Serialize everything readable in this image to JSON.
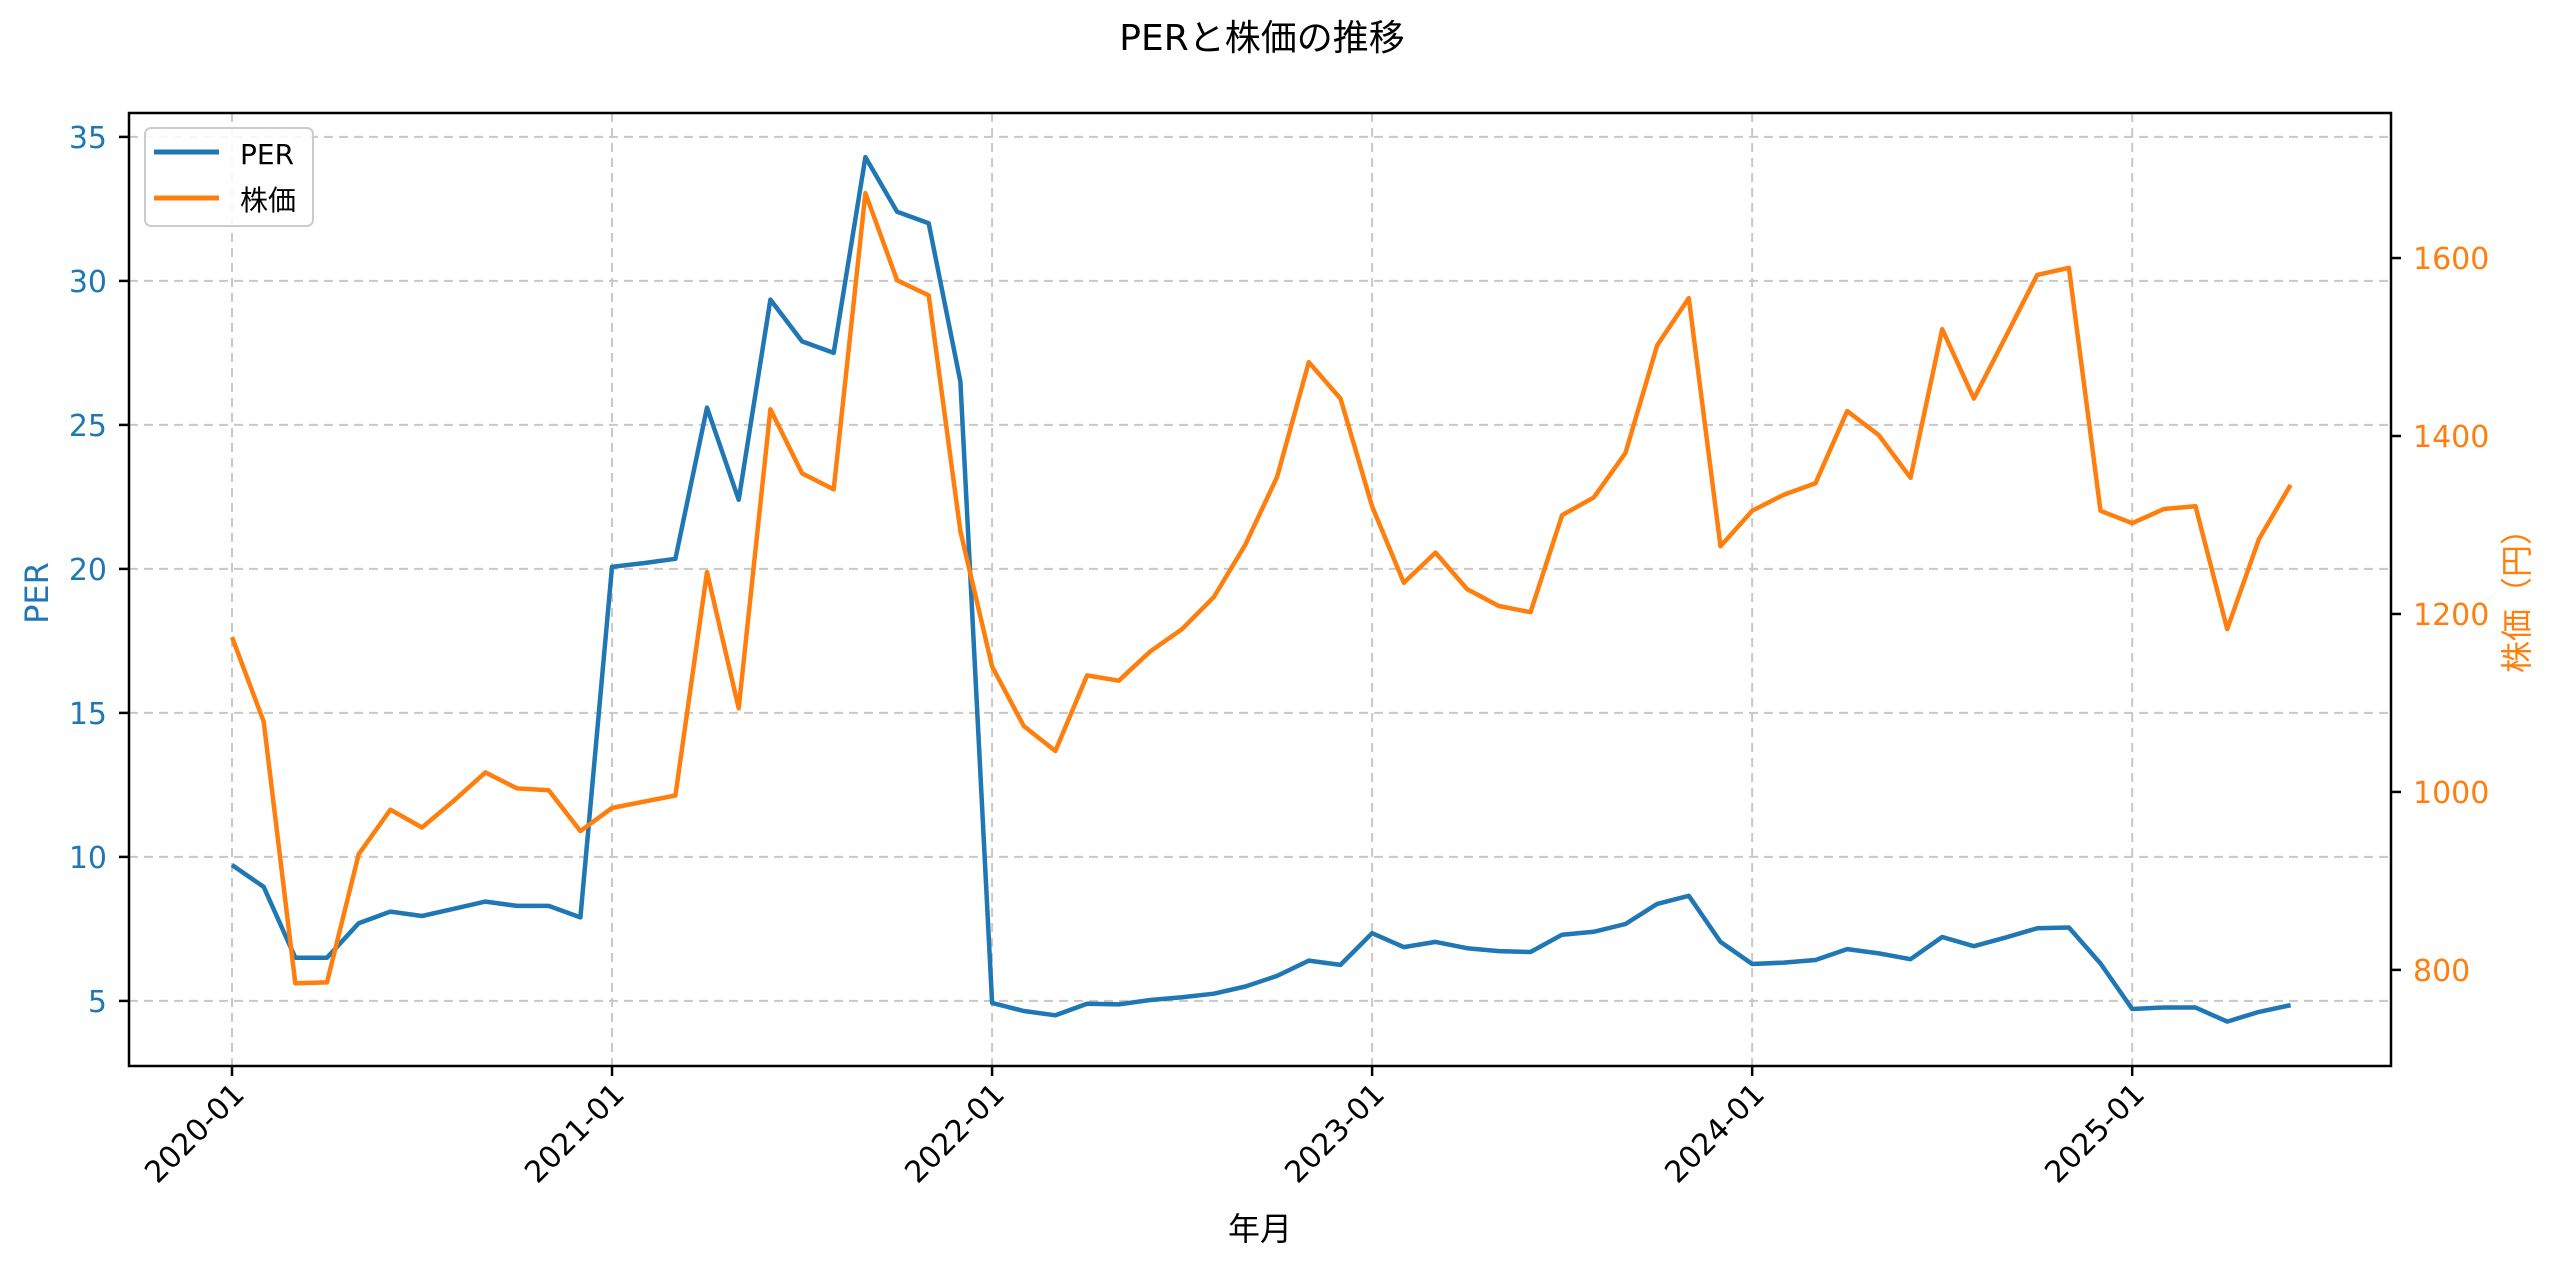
{
  "chart_data": {
    "type": "line",
    "title": "PERと株価の推移",
    "xlabel": "年月",
    "ylabel_left": "PER",
    "ylabel_right": "株価（円）",
    "x_tick_labels": [
      "2020-01",
      "2021-01",
      "2022-01",
      "2023-01",
      "2024-01",
      "2025-01"
    ],
    "y_left_ticks": [
      5,
      10,
      15,
      20,
      25,
      30,
      35
    ],
    "y_right_ticks": [
      800,
      1000,
      1200,
      1400,
      1600
    ],
    "y_left_lim": [
      2.74,
      35.83
    ],
    "y_right_lim": [
      692,
      1763
    ],
    "x_start": "2020-01",
    "x_end": "2025-06",
    "grid": true,
    "legend_position": "upper left",
    "legend": [
      "PER",
      "株価"
    ],
    "x": [
      "2020-01",
      "2020-02",
      "2020-03",
      "2020-04",
      "2020-05",
      "2020-06",
      "2020-07",
      "2020-08",
      "2020-09",
      "2020-10",
      "2020-11",
      "2020-12",
      "2021-01",
      "2021-02",
      "2021-03",
      "2021-04",
      "2021-05",
      "2021-06",
      "2021-07",
      "2021-08",
      "2021-09",
      "2021-10",
      "2021-11",
      "2021-12",
      "2022-01",
      "2022-02",
      "2022-03",
      "2022-04",
      "2022-05",
      "2022-06",
      "2022-07",
      "2022-08",
      "2022-09",
      "2022-10",
      "2022-11",
      "2022-12",
      "2023-01",
      "2023-02",
      "2023-03",
      "2023-04",
      "2023-05",
      "2023-06",
      "2023-07",
      "2023-08",
      "2023-09",
      "2023-10",
      "2023-11",
      "2023-12",
      "2024-01",
      "2024-02",
      "2024-03",
      "2024-04",
      "2024-05",
      "2024-06",
      "2024-07",
      "2024-08",
      "2024-09",
      "2024-10",
      "2024-11",
      "2024-12",
      "2025-01",
      "2025-02",
      "2025-03",
      "2025-04",
      "2025-05",
      "2025-06"
    ],
    "series": [
      {
        "name": "PER",
        "axis": "left",
        "color": "#1f77b4",
        "values": [
          9.72,
          8.96,
          6.5,
          6.5,
          7.7,
          8.1,
          7.95,
          8.2,
          8.45,
          8.3,
          8.3,
          7.9,
          20.07,
          20.2,
          20.35,
          25.6,
          22.4,
          29.35,
          27.9,
          27.5,
          34.3,
          32.4,
          32.0,
          26.5,
          4.93,
          4.65,
          4.5,
          4.9,
          4.88,
          5.03,
          5.13,
          5.25,
          5.5,
          5.87,
          6.4,
          6.25,
          7.35,
          6.87,
          7.05,
          6.83,
          6.73,
          6.7,
          7.3,
          7.4,
          7.67,
          8.37,
          8.65,
          7.05,
          6.28,
          6.33,
          6.42,
          6.8,
          6.65,
          6.45,
          7.22,
          6.9,
          7.2,
          7.52,
          7.55,
          6.3,
          4.72,
          4.77,
          4.77,
          4.28,
          4.62,
          4.85
        ]
      },
      {
        "name": "株価",
        "axis": "right",
        "color": "#ff7f0e",
        "values": [
          1174,
          1079,
          785,
          786,
          930,
          980,
          960,
          990,
          1022,
          1004,
          1002,
          956,
          982,
          989,
          996,
          1247,
          1094,
          1430,
          1358,
          1340,
          1673,
          1575,
          1558,
          1293,
          1141,
          1074,
          1046,
          1131,
          1125,
          1158,
          1183,
          1219,
          1278,
          1354,
          1483,
          1442,
          1321,
          1235,
          1269,
          1228,
          1209,
          1202,
          1311,
          1331,
          1381,
          1502,
          1555,
          1276,
          1316,
          1334,
          1347,
          1428,
          1401,
          1353,
          1520,
          1442,
          1511,
          1581,
          1589,
          1316,
          1302,
          1318,
          1321,
          1183,
          1284,
          1345
        ]
      }
    ]
  }
}
